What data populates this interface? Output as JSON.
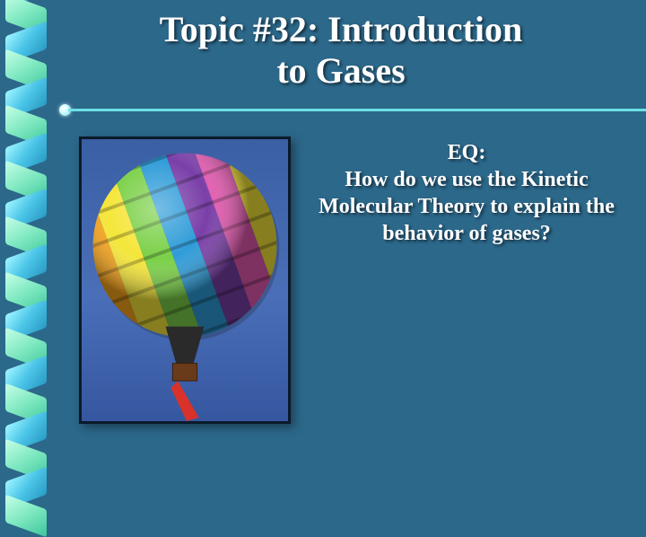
{
  "slide": {
    "title_line1": "Topic #32: Introduction",
    "title_line2": "to Gases",
    "title_fontsize": 40,
    "title_color": "#ffffff",
    "eq_label": "EQ:",
    "eq_text": "How do we use the Kinetic Molecular Theory to explain the behavior of gases?",
    "eq_fontsize": 24,
    "eq_color": "#ffffff",
    "background_color": "#2c688a",
    "divider_color": "#6fe0e6",
    "ribbon": {
      "twist_count": 10,
      "color_a": "#4bc5e8",
      "color_b": "#7de8c0"
    },
    "image": {
      "name": "hot-air-balloon-photo",
      "border_color": "#0a1a2a",
      "sky_color": "#4a6fb8",
      "balloon_stripes": [
        "#e23b28",
        "#f7a41b",
        "#f5e63a",
        "#7bd048",
        "#2f9cd8",
        "#7a3fa8",
        "#e35ab0",
        "#f5e63a",
        "#2f9cd8",
        "#e23b28"
      ],
      "basket_color": "#6a3b1a",
      "fabric_color": "#d8322a"
    }
  }
}
